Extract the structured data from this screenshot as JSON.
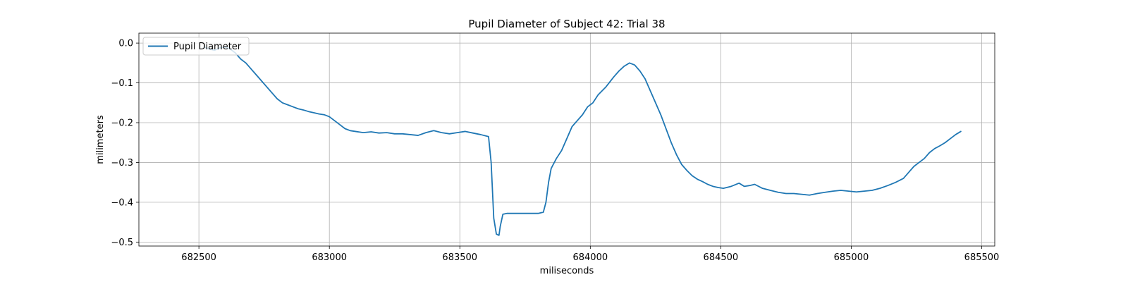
{
  "chart_data": {
    "type": "line",
    "title": "Pupil Diameter of Subject 42: Trial 38",
    "xlabel": "miliseconds",
    "ylabel": "milimeters",
    "xlim": [
      682270,
      685550
    ],
    "ylim": [
      -0.51,
      0.025
    ],
    "xticks": [
      682500,
      683000,
      683500,
      684000,
      684500,
      685000,
      685500
    ],
    "yticks": [
      0.0,
      -0.1,
      -0.2,
      -0.3,
      -0.4,
      -0.5
    ],
    "xtick_labels": [
      "682500",
      "683000",
      "683500",
      "684000",
      "684500",
      "685000",
      "685500"
    ],
    "ytick_labels": [
      "0.0",
      "−0.1",
      "−0.2",
      "−0.3",
      "−0.4",
      "−0.5"
    ],
    "grid": true,
    "legend_position": "top-left",
    "series": [
      {
        "name": "Pupil Diameter",
        "color": "#1f77b4",
        "x": [
          682520,
          682540,
          682560,
          682580,
          682600,
          682620,
          682640,
          682660,
          682680,
          682700,
          682720,
          682740,
          682760,
          682780,
          682800,
          682820,
          682840,
          682860,
          682880,
          682900,
          682920,
          682940,
          682960,
          682980,
          683000,
          683020,
          683040,
          683060,
          683080,
          683100,
          683130,
          683160,
          683190,
          683220,
          683250,
          683280,
          683310,
          683340,
          683370,
          683400,
          683430,
          683460,
          683490,
          683520,
          683550,
          683580,
          683610,
          683620,
          683630,
          683640,
          683650,
          683655,
          683665,
          683680,
          683700,
          683750,
          683800,
          683820,
          683830,
          683840,
          683850,
          683870,
          683890,
          683910,
          683930,
          683950,
          683970,
          683990,
          684010,
          684030,
          684060,
          684090,
          684110,
          684130,
          684150,
          684170,
          684190,
          684210,
          684230,
          684250,
          684270,
          684290,
          684310,
          684330,
          684350,
          684370,
          684390,
          684410,
          684430,
          684450,
          684470,
          684490,
          684510,
          684540,
          684570,
          684590,
          684610,
          684630,
          684660,
          684690,
          684720,
          684750,
          684780,
          684810,
          684840,
          684870,
          684900,
          684930,
          684960,
          684990,
          685020,
          685050,
          685080,
          685110,
          685140,
          685170,
          685200,
          685220,
          685240,
          685260,
          685280,
          685300,
          685320,
          685340,
          685360,
          685380,
          685400,
          685420
        ],
        "y": [
          -0.01,
          -0.015,
          -0.018,
          -0.012,
          -0.01,
          -0.015,
          -0.025,
          -0.04,
          -0.05,
          -0.065,
          -0.08,
          -0.095,
          -0.11,
          -0.125,
          -0.14,
          -0.15,
          -0.155,
          -0.16,
          -0.165,
          -0.168,
          -0.172,
          -0.175,
          -0.178,
          -0.18,
          -0.185,
          -0.195,
          -0.205,
          -0.215,
          -0.22,
          -0.222,
          -0.225,
          -0.223,
          -0.226,
          -0.225,
          -0.228,
          -0.228,
          -0.23,
          -0.232,
          -0.225,
          -0.22,
          -0.225,
          -0.228,
          -0.225,
          -0.222,
          -0.226,
          -0.23,
          -0.235,
          -0.3,
          -0.44,
          -0.48,
          -0.483,
          -0.46,
          -0.43,
          -0.428,
          -0.428,
          -0.428,
          -0.428,
          -0.425,
          -0.4,
          -0.35,
          -0.315,
          -0.29,
          -0.27,
          -0.24,
          -0.21,
          -0.195,
          -0.18,
          -0.16,
          -0.15,
          -0.13,
          -0.11,
          -0.085,
          -0.07,
          -0.058,
          -0.05,
          -0.055,
          -0.07,
          -0.09,
          -0.12,
          -0.15,
          -0.18,
          -0.215,
          -0.25,
          -0.28,
          -0.305,
          -0.32,
          -0.333,
          -0.342,
          -0.348,
          -0.355,
          -0.36,
          -0.363,
          -0.365,
          -0.36,
          -0.352,
          -0.36,
          -0.358,
          -0.355,
          -0.365,
          -0.37,
          -0.375,
          -0.378,
          -0.378,
          -0.38,
          -0.382,
          -0.378,
          -0.375,
          -0.372,
          -0.37,
          -0.372,
          -0.374,
          -0.372,
          -0.37,
          -0.365,
          -0.358,
          -0.35,
          -0.34,
          -0.325,
          -0.31,
          -0.3,
          -0.29,
          -0.275,
          -0.265,
          -0.258,
          -0.25,
          -0.24,
          -0.23,
          -0.222
        ]
      }
    ]
  }
}
